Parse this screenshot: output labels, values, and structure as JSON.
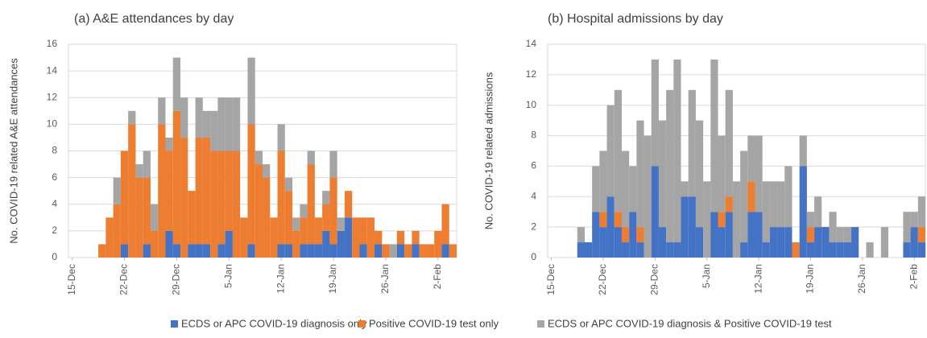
{
  "chart_data": [
    {
      "type": "bar",
      "stacked": true,
      "title": "(a) A&E attendances by day",
      "y_label": "No. COVID-19 related A&E attendances",
      "categories": [
        "15-Dec",
        null,
        null,
        null,
        null,
        null,
        null,
        "22-Dec",
        null,
        null,
        null,
        null,
        null,
        null,
        "29-Dec",
        null,
        null,
        null,
        null,
        null,
        null,
        "5-Jan",
        null,
        null,
        null,
        null,
        null,
        null,
        "12-Jan",
        null,
        null,
        null,
        null,
        null,
        null,
        "19-Jan",
        null,
        null,
        null,
        null,
        null,
        null,
        "26-Jan",
        null,
        null,
        null,
        null,
        null,
        null,
        "2-Feb",
        null,
        null
      ],
      "series": [
        {
          "name": "ECDS or APC COVID-19 diagnosis only",
          "color": "#4472c4",
          "values": [
            0,
            0,
            0,
            0,
            0,
            0,
            0,
            1,
            0,
            0,
            1,
            0,
            0,
            2,
            1,
            0,
            1,
            1,
            1,
            0,
            1,
            2,
            0,
            0,
            1,
            0,
            0,
            0,
            1,
            1,
            0,
            1,
            1,
            1,
            2,
            1,
            2,
            3,
            0,
            1,
            0,
            1,
            0,
            0,
            1,
            0,
            1,
            0,
            0,
            0,
            1,
            0
          ]
        },
        {
          "name": "Positive COVID-19 test only",
          "color": "#ed7d31",
          "values": [
            0,
            0,
            0,
            0,
            1,
            3,
            4,
            7,
            10,
            6,
            5,
            2,
            10,
            6,
            10,
            9,
            4,
            8,
            8,
            8,
            7,
            6,
            8,
            3,
            9,
            7,
            6,
            3,
            7,
            4,
            2,
            2,
            6,
            2,
            2,
            5,
            0,
            2,
            3,
            2,
            3,
            1,
            1,
            0,
            1,
            1,
            1,
            1,
            1,
            2,
            3,
            1
          ]
        },
        {
          "name": "ECDS or APC COVID-19 diagnosis & Positive COVID-19 test",
          "color": "#a5a5a5",
          "values": [
            0,
            0,
            0,
            0,
            0,
            0,
            2,
            0,
            1,
            1,
            2,
            2,
            2,
            1,
            4,
            3,
            0,
            3,
            2,
            3,
            4,
            4,
            4,
            0,
            5,
            1,
            1,
            0,
            2,
            1,
            1,
            1,
            1,
            0,
            1,
            2,
            1,
            0,
            0,
            0,
            0,
            0,
            0,
            1,
            0,
            0,
            0,
            0,
            0,
            0,
            0,
            0
          ]
        }
      ],
      "ylim": [
        0,
        16
      ],
      "yticks": [
        0,
        2,
        4,
        6,
        8,
        10,
        12,
        14,
        16
      ],
      "grid": true
    },
    {
      "type": "bar",
      "stacked": true,
      "title": "(b) Hospital admissions by day",
      "y_label": "No. COVID-19 related admissions",
      "categories": [
        "15-Dec",
        null,
        null,
        null,
        null,
        null,
        null,
        "22-Dec",
        null,
        null,
        null,
        null,
        null,
        null,
        "29-Dec",
        null,
        null,
        null,
        null,
        null,
        null,
        "5-Jan",
        null,
        null,
        null,
        null,
        null,
        null,
        "12-Jan",
        null,
        null,
        null,
        null,
        null,
        null,
        "19-Jan",
        null,
        null,
        null,
        null,
        null,
        null,
        "26-Jan",
        null,
        null,
        null,
        null,
        null,
        null,
        "2-Feb",
        null
      ],
      "series": [
        {
          "color": "#4472c4",
          "values": [
            0,
            0,
            0,
            0,
            1,
            1,
            3,
            2,
            4,
            2,
            1,
            3,
            1,
            0,
            6,
            2,
            1,
            1,
            4,
            4,
            2,
            0,
            3,
            2,
            3,
            0,
            1,
            3,
            3,
            1,
            2,
            2,
            2,
            0,
            6,
            1,
            2,
            2,
            1,
            1,
            1,
            2,
            0,
            0,
            0,
            0,
            0,
            0,
            1,
            2,
            1
          ]
        },
        {
          "color": "#ed7d31",
          "values": [
            0,
            0,
            0,
            0,
            0,
            0,
            0,
            1,
            0,
            1,
            1,
            0,
            1,
            0,
            0,
            0,
            0,
            0,
            0,
            0,
            0,
            0,
            0,
            1,
            1,
            0,
            0,
            2,
            0,
            0,
            0,
            0,
            0,
            1,
            0,
            1,
            0,
            0,
            0,
            0,
            0,
            0,
            0,
            0,
            0,
            0,
            0,
            0,
            0,
            0,
            1
          ]
        },
        {
          "color": "#a5a5a5",
          "values": [
            0,
            0,
            0,
            0,
            1,
            0,
            3,
            4,
            6,
            8,
            5,
            3,
            7,
            8,
            7,
            7,
            10,
            12,
            1,
            7,
            7,
            5,
            10,
            5,
            7,
            5,
            6,
            3,
            5,
            4,
            3,
            3,
            4,
            0,
            2,
            1,
            2,
            0,
            2,
            1,
            1,
            0,
            0,
            1,
            0,
            2,
            0,
            0,
            2,
            1,
            2
          ]
        }
      ],
      "ylim": [
        0,
        14
      ],
      "yticks": [
        0,
        2,
        4,
        6,
        8,
        10,
        12,
        14
      ],
      "grid": true
    }
  ]
}
